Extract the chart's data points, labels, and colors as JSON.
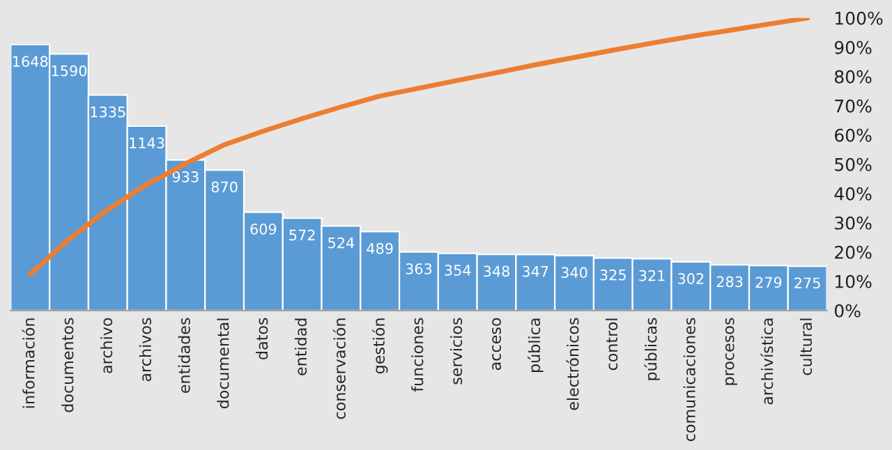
{
  "chart_data": {
    "type": "bar",
    "categories": [
      "información",
      "documentos",
      "archivo",
      "archivos",
      "entidades",
      "documental",
      "datos",
      "entidad",
      "conservación",
      "gestión",
      "funciones",
      "servicios",
      "acceso",
      "pública",
      "electrónicos",
      "control",
      "públicas",
      "comunicaciones",
      "procesos",
      "archivística",
      "cultural"
    ],
    "series": [
      {
        "color": "#5b9bd5",
        "values": [
          1648,
          1590,
          1335,
          1143,
          933,
          870,
          609,
          572,
          524,
          489,
          363,
          354,
          348,
          347,
          340,
          325,
          321,
          302,
          283,
          279,
          275
        ],
        "value_labels": [
          "1648",
          "1590",
          "1335",
          "1143",
          "933",
          "870",
          "609",
          "572",
          "524",
          "489",
          "363",
          "354",
          "348",
          "347",
          "340",
          "325",
          "321",
          "302",
          "283",
          "279",
          "275"
        ]
      },
      {
        "type": "line",
        "axis": "y2",
        "color": "#ed7d31",
        "values": [
          12.4,
          24.4,
          34.5,
          43.1,
          50.2,
          56.7,
          61.3,
          65.6,
          69.6,
          73.3,
          76.0,
          78.7,
          81.3,
          84.0,
          86.5,
          89.0,
          91.4,
          93.7,
          95.8,
          97.9,
          100
        ]
      }
    ],
    "y2lim": [
      0,
      100
    ],
    "y2ticks": [
      {
        "value": 0,
        "label": "0%"
      },
      {
        "value": 10,
        "label": "10%"
      },
      {
        "value": 20,
        "label": "20%"
      },
      {
        "value": 30,
        "label": "30%"
      },
      {
        "value": 40,
        "label": "40%"
      },
      {
        "value": 50,
        "label": "50%"
      },
      {
        "value": 60,
        "label": "60%"
      },
      {
        "value": 70,
        "label": "70%"
      },
      {
        "value": 80,
        "label": "80%"
      },
      {
        "value": 90,
        "label": "90%"
      },
      {
        "value": 100,
        "label": "100%"
      }
    ],
    "grid": false,
    "legend": false,
    "marker": "none",
    "line_style": "solid"
  }
}
